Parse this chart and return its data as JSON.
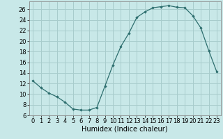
{
  "x": [
    0,
    1,
    2,
    3,
    4,
    5,
    6,
    7,
    8,
    9,
    10,
    11,
    12,
    13,
    14,
    15,
    16,
    17,
    18,
    19,
    20,
    21,
    22,
    23
  ],
  "y": [
    12.5,
    11.2,
    10.2,
    9.5,
    8.5,
    7.2,
    7.0,
    7.0,
    7.5,
    11.5,
    15.5,
    19.0,
    21.5,
    24.5,
    25.5,
    26.3,
    26.5,
    26.7,
    26.4,
    26.3,
    24.8,
    22.5,
    18.2,
    14.2
  ],
  "line_color": "#2d6e6e",
  "marker": "D",
  "marker_size": 1.8,
  "bg_color": "#c8e8e8",
  "grid_color": "#a8cccc",
  "xlabel": "Humidex (Indice chaleur)",
  "xlim": [
    -0.5,
    23.5
  ],
  "ylim": [
    6,
    27.5
  ],
  "yticks": [
    6,
    8,
    10,
    12,
    14,
    16,
    18,
    20,
    22,
    24,
    26
  ],
  "xticks": [
    0,
    1,
    2,
    3,
    4,
    5,
    6,
    7,
    8,
    9,
    10,
    11,
    12,
    13,
    14,
    15,
    16,
    17,
    18,
    19,
    20,
    21,
    22,
    23
  ],
  "xlabel_fontsize": 7,
  "tick_fontsize": 6
}
